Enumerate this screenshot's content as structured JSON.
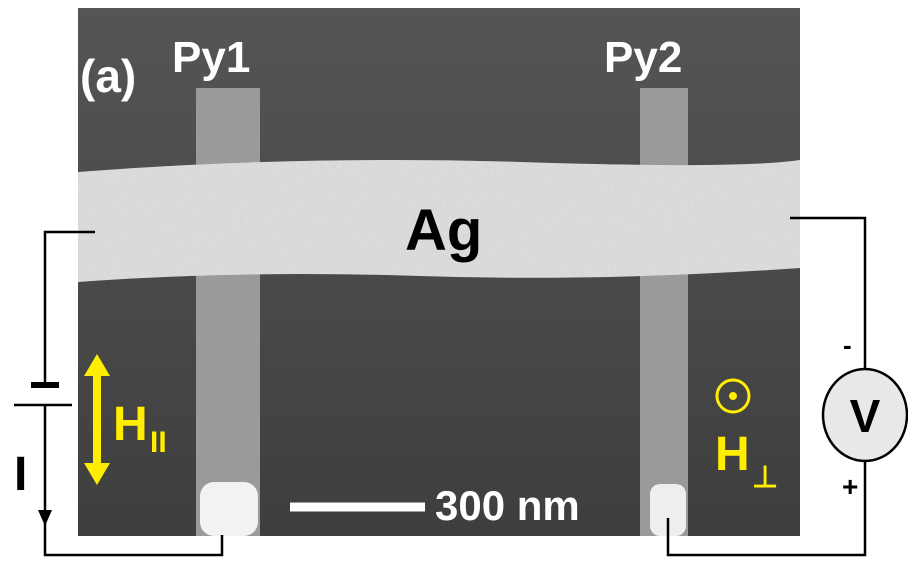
{
  "figure": {
    "panel_label": "(a)",
    "labels": {
      "py1": "Py1",
      "py2": "Py2",
      "ag": "Ag"
    },
    "scale_bar": "300 nm",
    "field_parallel": {
      "symbol": "H",
      "subscript": "II"
    },
    "field_perp": {
      "symbol": "H",
      "subscript": "⊥"
    },
    "circuit": {
      "current": "I",
      "voltmeter": "V",
      "minus": "-",
      "plus": "+"
    }
  }
}
